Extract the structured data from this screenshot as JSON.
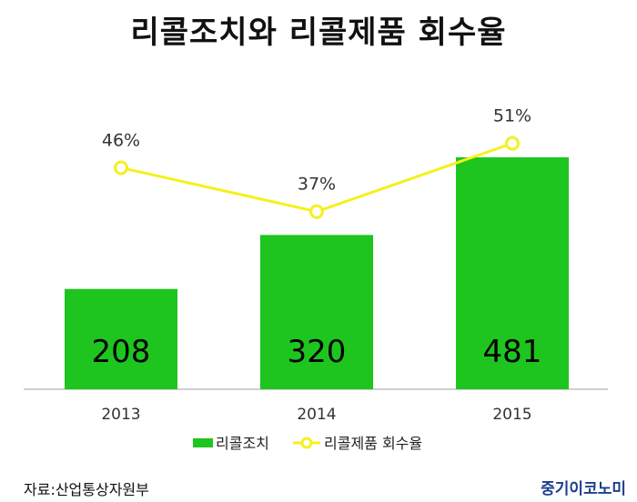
{
  "title": "리콜조치와 리콜제품 회수율",
  "source": "자료:산업통상자원부",
  "brand": "중기이코노미",
  "colors": {
    "bar": "#1ec51e",
    "line": "#f5f01e",
    "axis": "#bfbfbf"
  },
  "chart_data": {
    "type": "bar",
    "categories": [
      "2013",
      "2014",
      "2015"
    ],
    "series": [
      {
        "name": "리콜조치",
        "type": "bar",
        "values": [
          208,
          320,
          481
        ],
        "labels": [
          "208",
          "320",
          "481"
        ]
      },
      {
        "name": "리콜제품 회수율",
        "type": "line",
        "values": [
          46,
          37,
          51
        ],
        "labels": [
          "46%",
          "37%",
          "51%"
        ]
      }
    ],
    "title": "리콜조치와 리콜제품 회수율",
    "xlabel": "",
    "ylabel": "",
    "legend": "bottom",
    "grid": false
  }
}
